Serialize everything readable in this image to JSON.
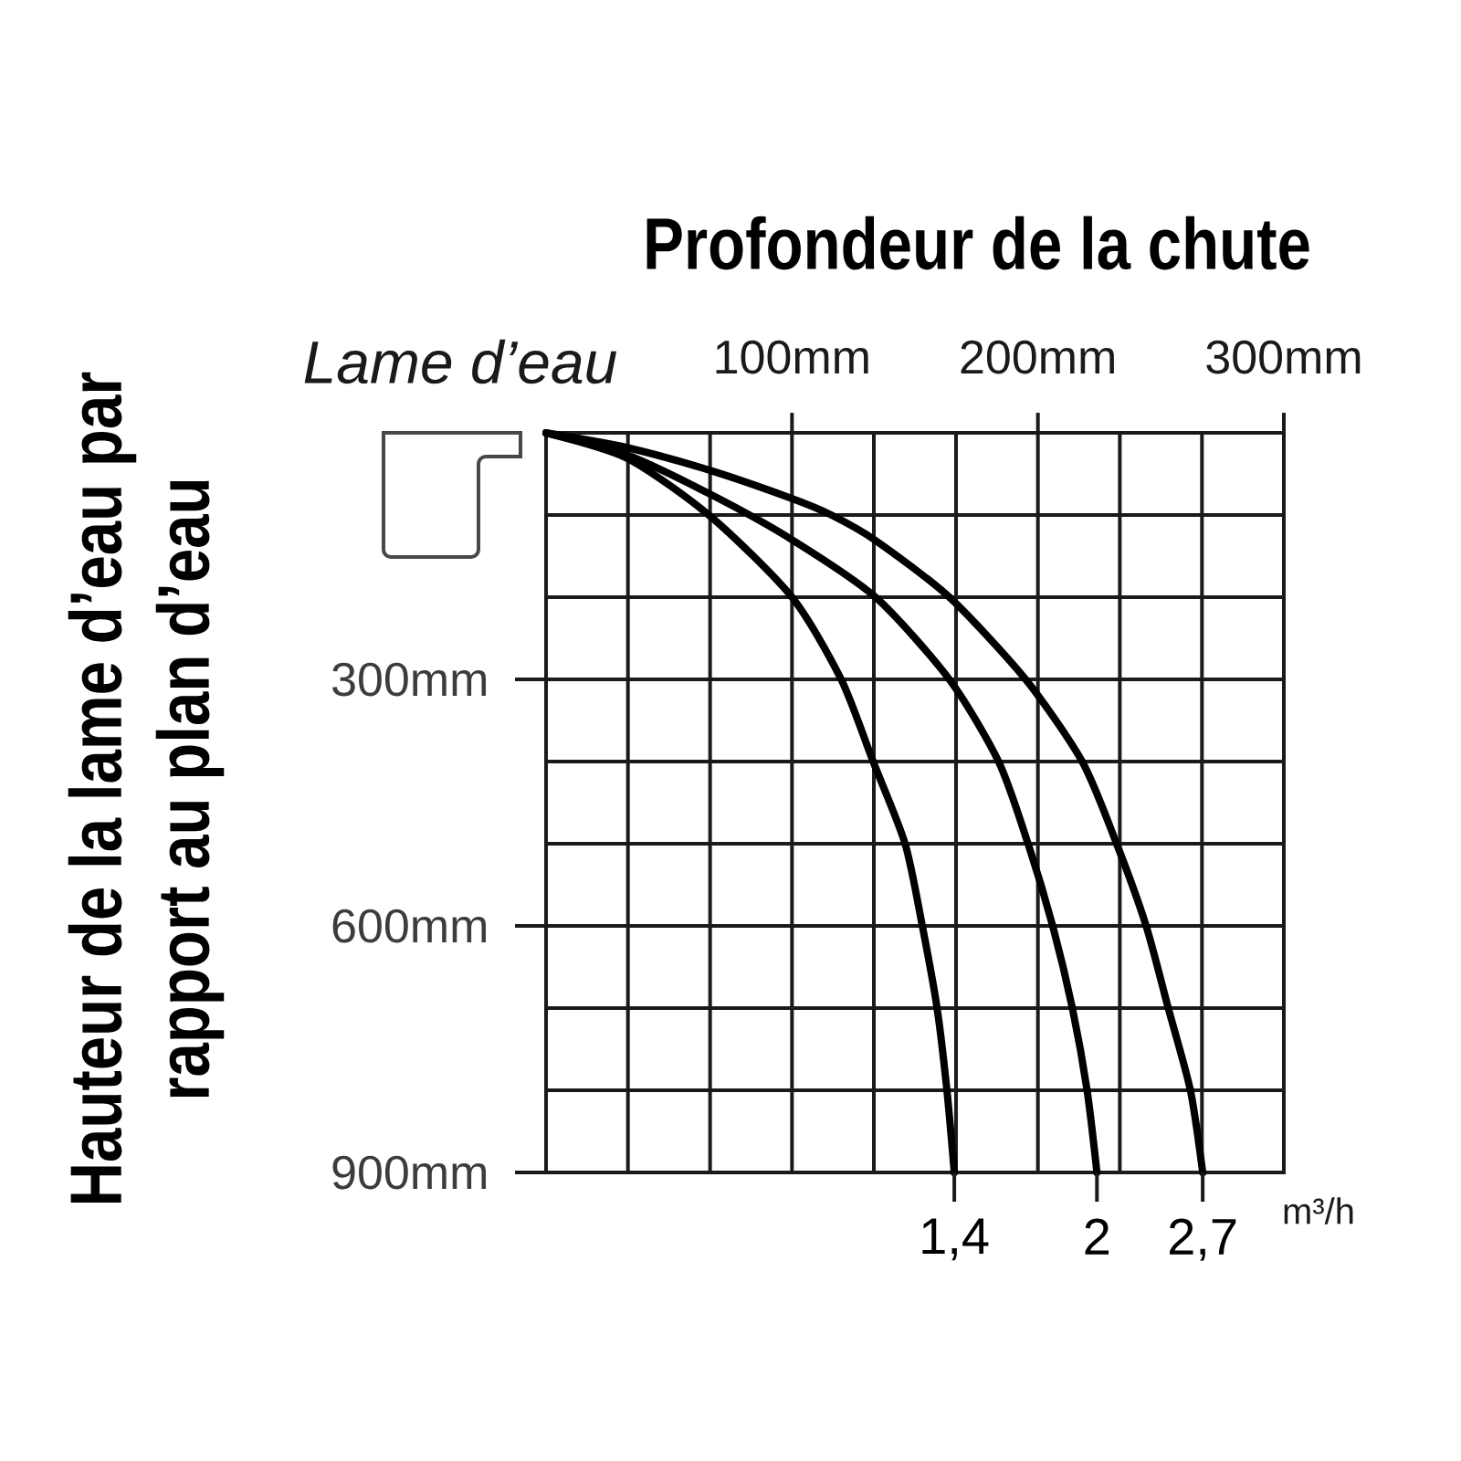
{
  "chart_data": {
    "type": "line",
    "xlabel": "Profondeur de la chute",
    "ylabel": "Hauteur de la lame d’eau par rapport au plan d’eau",
    "annotations": [
      "Lame d’eau",
      "m³/h"
    ],
    "xlim": [
      0,
      300
    ],
    "ylim": [
      900,
      0
    ],
    "xticks": [
      {
        "value": 33.3,
        "label": null
      },
      {
        "value": 66.7,
        "label": null
      },
      {
        "value": 100,
        "label": "100mm"
      },
      {
        "value": 133.3,
        "label": null
      },
      {
        "value": 166.7,
        "label": null
      },
      {
        "value": 200,
        "label": "200mm"
      },
      {
        "value": 233.3,
        "label": null
      },
      {
        "value": 266.7,
        "label": null
      },
      {
        "value": 300,
        "label": "300mm"
      }
    ],
    "yticks": [
      {
        "value": 100,
        "label": null
      },
      {
        "value": 200,
        "label": null
      },
      {
        "value": 300,
        "label": "300mm"
      },
      {
        "value": 400,
        "label": null
      },
      {
        "value": 500,
        "label": null
      },
      {
        "value": 600,
        "label": "600mm"
      },
      {
        "value": 700,
        "label": null
      },
      {
        "value": 800,
        "label": null
      },
      {
        "value": 900,
        "label": "900mm"
      }
    ],
    "grid": true,
    "series": [
      {
        "name": "1,4",
        "color": "#000000",
        "x": [
          0,
          33,
          67,
          100,
          120,
          133,
          146,
          153,
          159,
          163,
          166
        ],
        "values": [
          0,
          31,
          102,
          200,
          300,
          400,
          500,
          600,
          700,
          800,
          900
        ]
      },
      {
        "name": "2",
        "color": "#000000",
        "x": [
          0,
          33,
          67,
          100,
          134,
          164,
          184,
          196,
          206,
          214,
          220,
          224
        ],
        "values": [
          0,
          27,
          75,
          130,
          200,
          300,
          400,
          500,
          600,
          700,
          800,
          900
        ]
      },
      {
        "name": "2,7",
        "color": "#000000",
        "x": [
          0,
          33,
          67,
          100,
          116,
          134,
          164,
          195,
          218,
          232,
          244,
          253,
          262,
          267
        ],
        "values": [
          0,
          18,
          46,
          80,
          100,
          131,
          200,
          300,
          400,
          500,
          600,
          700,
          800,
          900
        ]
      }
    ]
  }
}
